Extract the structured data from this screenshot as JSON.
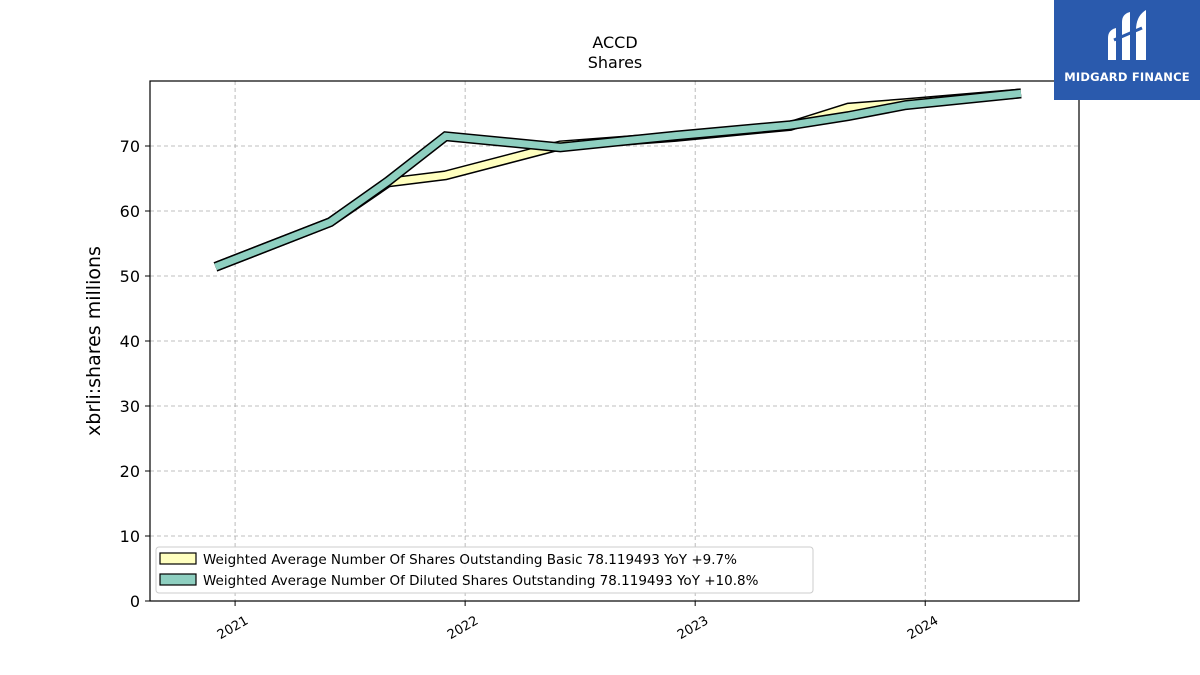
{
  "chart_data": {
    "type": "line",
    "title": "ACCD",
    "subtitle": "Shares",
    "ylabel": "xbrli:shares millions",
    "xlabel": "",
    "ylim": [
      0,
      80
    ],
    "yticks": [
      0,
      10,
      20,
      30,
      40,
      50,
      60,
      70
    ],
    "xticks": [
      "2021",
      "2022",
      "2023",
      "2024"
    ],
    "xlim": [
      "2020-08-19",
      "2024-09-01"
    ],
    "grid": true,
    "legend_position": "lower-left",
    "colors": {
      "basic": "#ffffbf",
      "diluted": "#8ecfc0",
      "outline": "#000000"
    },
    "series": [
      {
        "key": "basic",
        "name": "Weighted Average Number Of Shares Outstanding Basic",
        "legend_label": "Weighted Average Number Of Shares Outstanding Basic  78.119493 YoY +9.7%",
        "x": [
          "2020-12-01",
          "2021-06-01",
          "2021-09-01",
          "2021-12-01",
          "2022-06-01",
          "2022-12-01",
          "2023-06-01",
          "2023-09-01",
          "2023-12-01",
          "2024-06-01"
        ],
        "values": [
          51.4,
          58.3,
          64.4,
          65.5,
          70.1,
          71.4,
          73.1,
          75.9,
          76.6,
          78.1
        ]
      },
      {
        "key": "diluted",
        "name": "Weighted Average Number Of Diluted Shares Outstanding",
        "legend_label": "Weighted Average Number Of Diluted Shares Outstanding  78.119493 YoY +10.8%",
        "x": [
          "2020-12-01",
          "2021-06-01",
          "2021-09-01",
          "2021-12-01",
          "2022-06-01",
          "2022-12-01",
          "2023-06-01",
          "2023-09-01",
          "2023-12-01",
          "2024-06-01"
        ],
        "values": [
          51.4,
          58.3,
          64.6,
          71.5,
          69.8,
          71.6,
          73.2,
          74.6,
          76.3,
          78.1
        ]
      }
    ]
  },
  "logo": {
    "text": "MIDGARD FINANCE"
  }
}
